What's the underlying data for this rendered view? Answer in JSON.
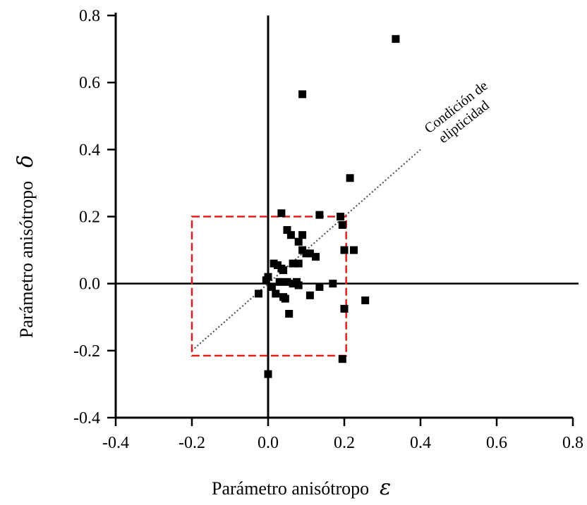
{
  "chart_data": {
    "type": "scatter",
    "xlabel": "Parámetro anisótropo",
    "xlabel_symbol": "ε",
    "ylabel": "Parámetro anisótropo",
    "ylabel_symbol": "δ",
    "xlim": [
      -0.4,
      0.8
    ],
    "ylim": [
      -0.4,
      0.8
    ],
    "x_ticks": [
      "-0.4",
      "-0.2",
      "0.0",
      "0.2",
      "0.4",
      "0.6",
      "0.8"
    ],
    "y_ticks": [
      "0.8",
      "0.6",
      "0.4",
      "0.2",
      "0.0",
      "-0.2",
      "-0.4"
    ],
    "grid": false,
    "marker": "square",
    "marker_color": "#000000",
    "points": [
      {
        "x": 0.335,
        "y": 0.73
      },
      {
        "x": 0.09,
        "y": 0.565
      },
      {
        "x": 0.215,
        "y": 0.315
      },
      {
        "x": 0.035,
        "y": 0.21
      },
      {
        "x": 0.135,
        "y": 0.205
      },
      {
        "x": 0.19,
        "y": 0.2
      },
      {
        "x": 0.195,
        "y": 0.175
      },
      {
        "x": 0.05,
        "y": 0.16
      },
      {
        "x": 0.06,
        "y": 0.145
      },
      {
        "x": 0.09,
        "y": 0.145
      },
      {
        "x": 0.08,
        "y": 0.125
      },
      {
        "x": 0.09,
        "y": 0.1
      },
      {
        "x": 0.1,
        "y": 0.09
      },
      {
        "x": 0.11,
        "y": 0.09
      },
      {
        "x": 0.125,
        "y": 0.08
      },
      {
        "x": 0.2,
        "y": 0.1
      },
      {
        "x": 0.225,
        "y": 0.1
      },
      {
        "x": 0.015,
        "y": 0.06
      },
      {
        "x": 0.025,
        "y": 0.055
      },
      {
        "x": 0.065,
        "y": 0.06
      },
      {
        "x": 0.08,
        "y": 0.06
      },
      {
        "x": 0.035,
        "y": 0.045
      },
      {
        "x": 0.04,
        "y": 0.04
      },
      {
        "x": 0.0,
        "y": 0.02
      },
      {
        "x": -0.005,
        "y": 0.01
      },
      {
        "x": 0.01,
        "y": -0.01
      },
      {
        "x": 0.03,
        "y": 0.005
      },
      {
        "x": 0.05,
        "y": 0.005
      },
      {
        "x": 0.065,
        "y": 0.0
      },
      {
        "x": 0.075,
        "y": 0.005
      },
      {
        "x": 0.08,
        "y": -0.005
      },
      {
        "x": 0.17,
        "y": 0.0
      },
      {
        "x": 0.135,
        "y": -0.01
      },
      {
        "x": -0.025,
        "y": -0.03
      },
      {
        "x": 0.02,
        "y": -0.03
      },
      {
        "x": 0.04,
        "y": -0.04
      },
      {
        "x": 0.045,
        "y": -0.045
      },
      {
        "x": 0.11,
        "y": -0.035
      },
      {
        "x": 0.255,
        "y": -0.05
      },
      {
        "x": 0.2,
        "y": -0.075
      },
      {
        "x": 0.055,
        "y": -0.09
      },
      {
        "x": 0.195,
        "y": -0.225
      },
      {
        "x": 0.0,
        "y": -0.27
      }
    ],
    "ellipticity_line": {
      "style": "dotted",
      "color": "#555555",
      "from": {
        "x": -0.2,
        "y": -0.2
      },
      "to": {
        "x": 0.4,
        "y": 0.4
      },
      "label_line1": "Condición de",
      "label_line2": "elipticidad"
    },
    "highlight_box": {
      "style": "dashed",
      "color": "#e0201b",
      "x0": -0.2,
      "x1": 0.205,
      "y0": -0.215,
      "y1": 0.2
    }
  }
}
